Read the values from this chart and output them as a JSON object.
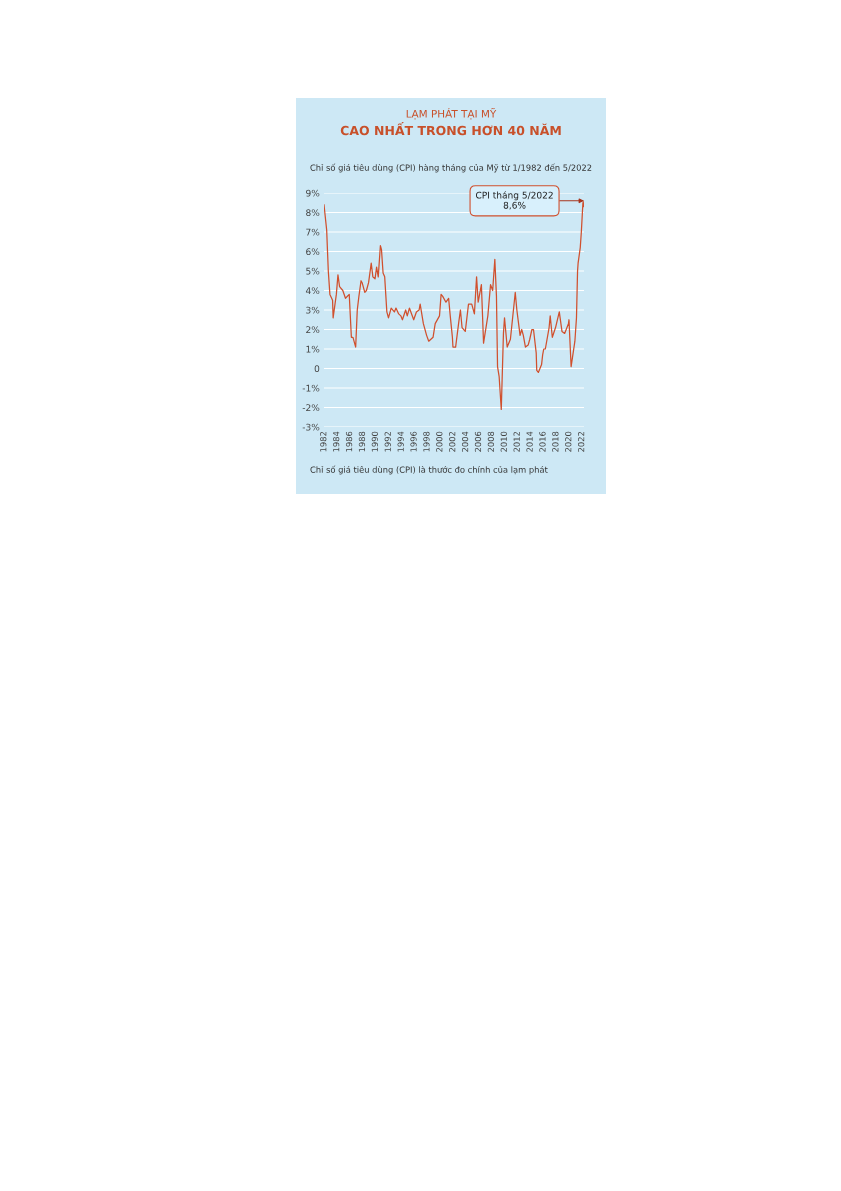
{
  "chart_data": {
    "type": "line",
    "title": "LẠM PHÁT TẠI MỸ\nCAO NHẤT TRONG HƠN 40 NĂM",
    "subtitle": "Chỉ số giá tiêu dùng (CPI) hàng tháng của Mỹ từ 1/1982 đến 5/2022",
    "annotations": [
      {
        "text": "CPI tháng 5/2022\n8,6%",
        "x": "2022-05",
        "y": 8.6
      },
      "Chỉ số giá tiêu dùng (CPI) là thước đo chính của lạm phát"
    ],
    "x": [
      "1982-01",
      "1982-06",
      "1982-09",
      "1982-12",
      "1983-05",
      "1983-06",
      "1983-12",
      "1984-03",
      "1984-06",
      "1984-12",
      "1985-05",
      "1985-12",
      "1986-04",
      "1986-07",
      "1986-12",
      "1987-03",
      "1987-06",
      "1987-10",
      "1987-12",
      "1988-05",
      "1988-08",
      "1988-12",
      "1989-05",
      "1989-08",
      "1989-12",
      "1990-03",
      "1990-06",
      "1990-10",
      "1990-12",
      "1991-03",
      "1991-06",
      "1991-10",
      "1992-01",
      "1992-06",
      "1992-12",
      "1993-03",
      "1993-08",
      "1993-12",
      "1994-03",
      "1994-09",
      "1994-12",
      "1995-04",
      "1995-12",
      "1996-05",
      "1996-10",
      "1996-12",
      "1997-06",
      "1997-12",
      "1998-04",
      "1998-12",
      "1999-04",
      "1999-12",
      "2000-03",
      "2000-06",
      "2000-12",
      "2001-05",
      "2001-08",
      "2001-12",
      "2002-01",
      "2002-06",
      "2002-12",
      "2003-03",
      "2003-06",
      "2003-12",
      "2004-06",
      "2004-12",
      "2005-05",
      "2005-09",
      "2005-12",
      "2006-06",
      "2006-10",
      "2007-06",
      "2007-11",
      "2008-03",
      "2008-07",
      "2008-10",
      "2008-12",
      "2009-03",
      "2009-07",
      "2009-11",
      "2010-01",
      "2010-06",
      "2010-12",
      "2011-09",
      "2011-12",
      "2012-06",
      "2012-09",
      "2012-12",
      "2013-04",
      "2013-09",
      "2013-12",
      "2014-04",
      "2014-07",
      "2014-12",
      "2015-01",
      "2015-04",
      "2015-10",
      "2015-12",
      "2016-02",
      "2016-05",
      "2016-12",
      "2017-02",
      "2017-06",
      "2017-12",
      "2018-07",
      "2018-12",
      "2019-05",
      "2019-12",
      "2020-01",
      "2020-05",
      "2020-12",
      "2021-03",
      "2021-05",
      "2021-06",
      "2021-10",
      "2021-12",
      "2022-03",
      "2022-04",
      "2022-05"
    ],
    "series": [
      {
        "color": "#d0502e",
        "values": [
          8.4,
          7.1,
          5.0,
          3.8,
          3.5,
          2.6,
          3.8,
          4.8,
          4.2,
          4.0,
          3.6,
          3.8,
          1.6,
          1.6,
          1.1,
          3.0,
          3.7,
          4.5,
          4.4,
          3.9,
          4.0,
          4.4,
          5.4,
          4.7,
          4.6,
          5.2,
          4.7,
          6.3,
          6.1,
          4.9,
          4.7,
          2.9,
          2.6,
          3.1,
          2.9,
          3.1,
          2.8,
          2.7,
          2.5,
          3.0,
          2.7,
          3.1,
          2.5,
          2.9,
          3.0,
          3.3,
          2.3,
          1.7,
          1.4,
          1.6,
          2.3,
          2.7,
          3.8,
          3.7,
          3.4,
          3.6,
          2.7,
          1.6,
          1.1,
          1.1,
          2.4,
          3.0,
          2.1,
          1.9,
          3.3,
          3.3,
          2.8,
          4.7,
          3.4,
          4.3,
          1.3,
          2.7,
          4.3,
          4.0,
          5.6,
          3.7,
          0.1,
          -0.4,
          -2.1,
          1.8,
          2.6,
          1.1,
          1.5,
          3.9,
          3.0,
          1.7,
          2.0,
          1.7,
          1.1,
          1.2,
          1.5,
          2.0,
          2.0,
          0.8,
          -0.1,
          -0.2,
          0.2,
          0.7,
          1.0,
          1.0,
          2.1,
          2.7,
          1.6,
          2.1,
          2.9,
          1.9,
          1.8,
          2.3,
          2.5,
          0.1,
          1.4,
          2.6,
          5.0,
          5.4,
          6.2,
          7.0,
          8.5,
          8.3,
          8.6
        ]
      }
    ],
    "xlim": [
      "1982-01",
      "2022-05"
    ],
    "ylim": [
      -3,
      9
    ],
    "yticks": [
      {
        "value": -3,
        "label": "-3%"
      },
      {
        "value": -2,
        "label": "-2%"
      },
      {
        "value": -1,
        "label": "-1%"
      },
      {
        "value": 0,
        "label": "0"
      },
      {
        "value": 1,
        "label": "1%"
      },
      {
        "value": 2,
        "label": "2%"
      },
      {
        "value": 3,
        "label": "3%"
      },
      {
        "value": 4,
        "label": "4%"
      },
      {
        "value": 5,
        "label": "5%"
      },
      {
        "value": 6,
        "label": "6%"
      },
      {
        "value": 7,
        "label": "7%"
      },
      {
        "value": 8,
        "label": "8%"
      },
      {
        "value": 9,
        "label": "9%"
      }
    ],
    "grid": "y",
    "xticks": [
      "1982",
      "1984",
      "1986",
      "1988",
      "1990",
      "1992",
      "1994",
      "1996",
      "1998",
      "2000",
      "2002",
      "2004",
      "2006",
      "2008",
      "2010",
      "2012",
      "2014",
      "2016",
      "2018",
      "2020",
      "2022"
    ],
    "marker": "none",
    "line_style": "solid"
  }
}
